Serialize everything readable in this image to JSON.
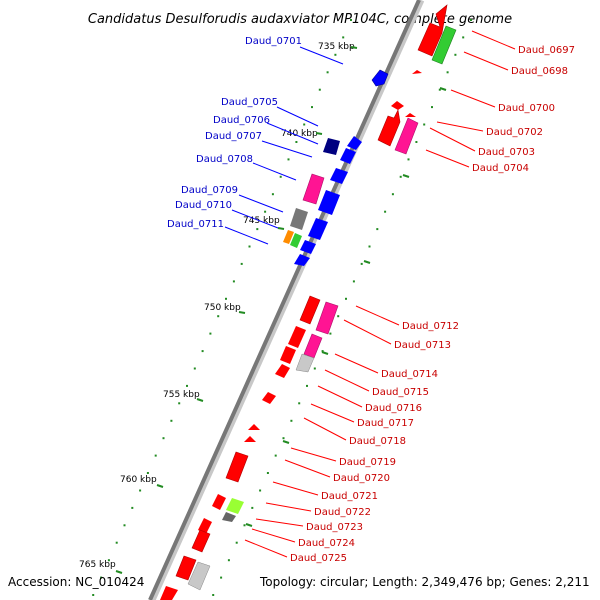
{
  "title": "Candidatus Desulforudis audaxviator MP104C, complete genome",
  "footer": {
    "accession": "Accession: NC_010424",
    "topology": "Topology: circular; Length: 2,349,476 bp; Genes: 2,211"
  },
  "ticks": [
    "735 kbp",
    "740 kbp",
    "745 kbp",
    "750 kbp",
    "755 kbp",
    "760 kbp",
    "765 kbp"
  ],
  "left_labels": [
    "Daud_0701",
    "Daud_0705",
    "Daud_0706",
    "Daud_0707",
    "Daud_0708",
    "Daud_0709",
    "Daud_0710",
    "Daud_0711"
  ],
  "right_labels": [
    "Daud_0697",
    "Daud_0698",
    "Daud_0700",
    "Daud_0702",
    "Daud_0703",
    "Daud_0704",
    "Daud_0712",
    "Daud_0713",
    "Daud_0714",
    "Daud_0715",
    "Daud_0716",
    "Daud_0717",
    "Daud_0718",
    "Daud_0719",
    "Daud_0720",
    "Daud_0721",
    "Daud_0722",
    "Daud_0723",
    "Daud_0724",
    "Daud_0725"
  ],
  "colors": {
    "reverse_strand": "#ff0000",
    "forward_strand": "#0000ff",
    "magenta": "#ff1493",
    "green": "#33cc33",
    "gray": "#777777",
    "dark_navy": "#000080",
    "orange": "#ff8c00",
    "light_gray": "#c8c8c8",
    "lime": "#99ff33",
    "tick_green": "#228b22",
    "backbone": "#777777"
  }
}
